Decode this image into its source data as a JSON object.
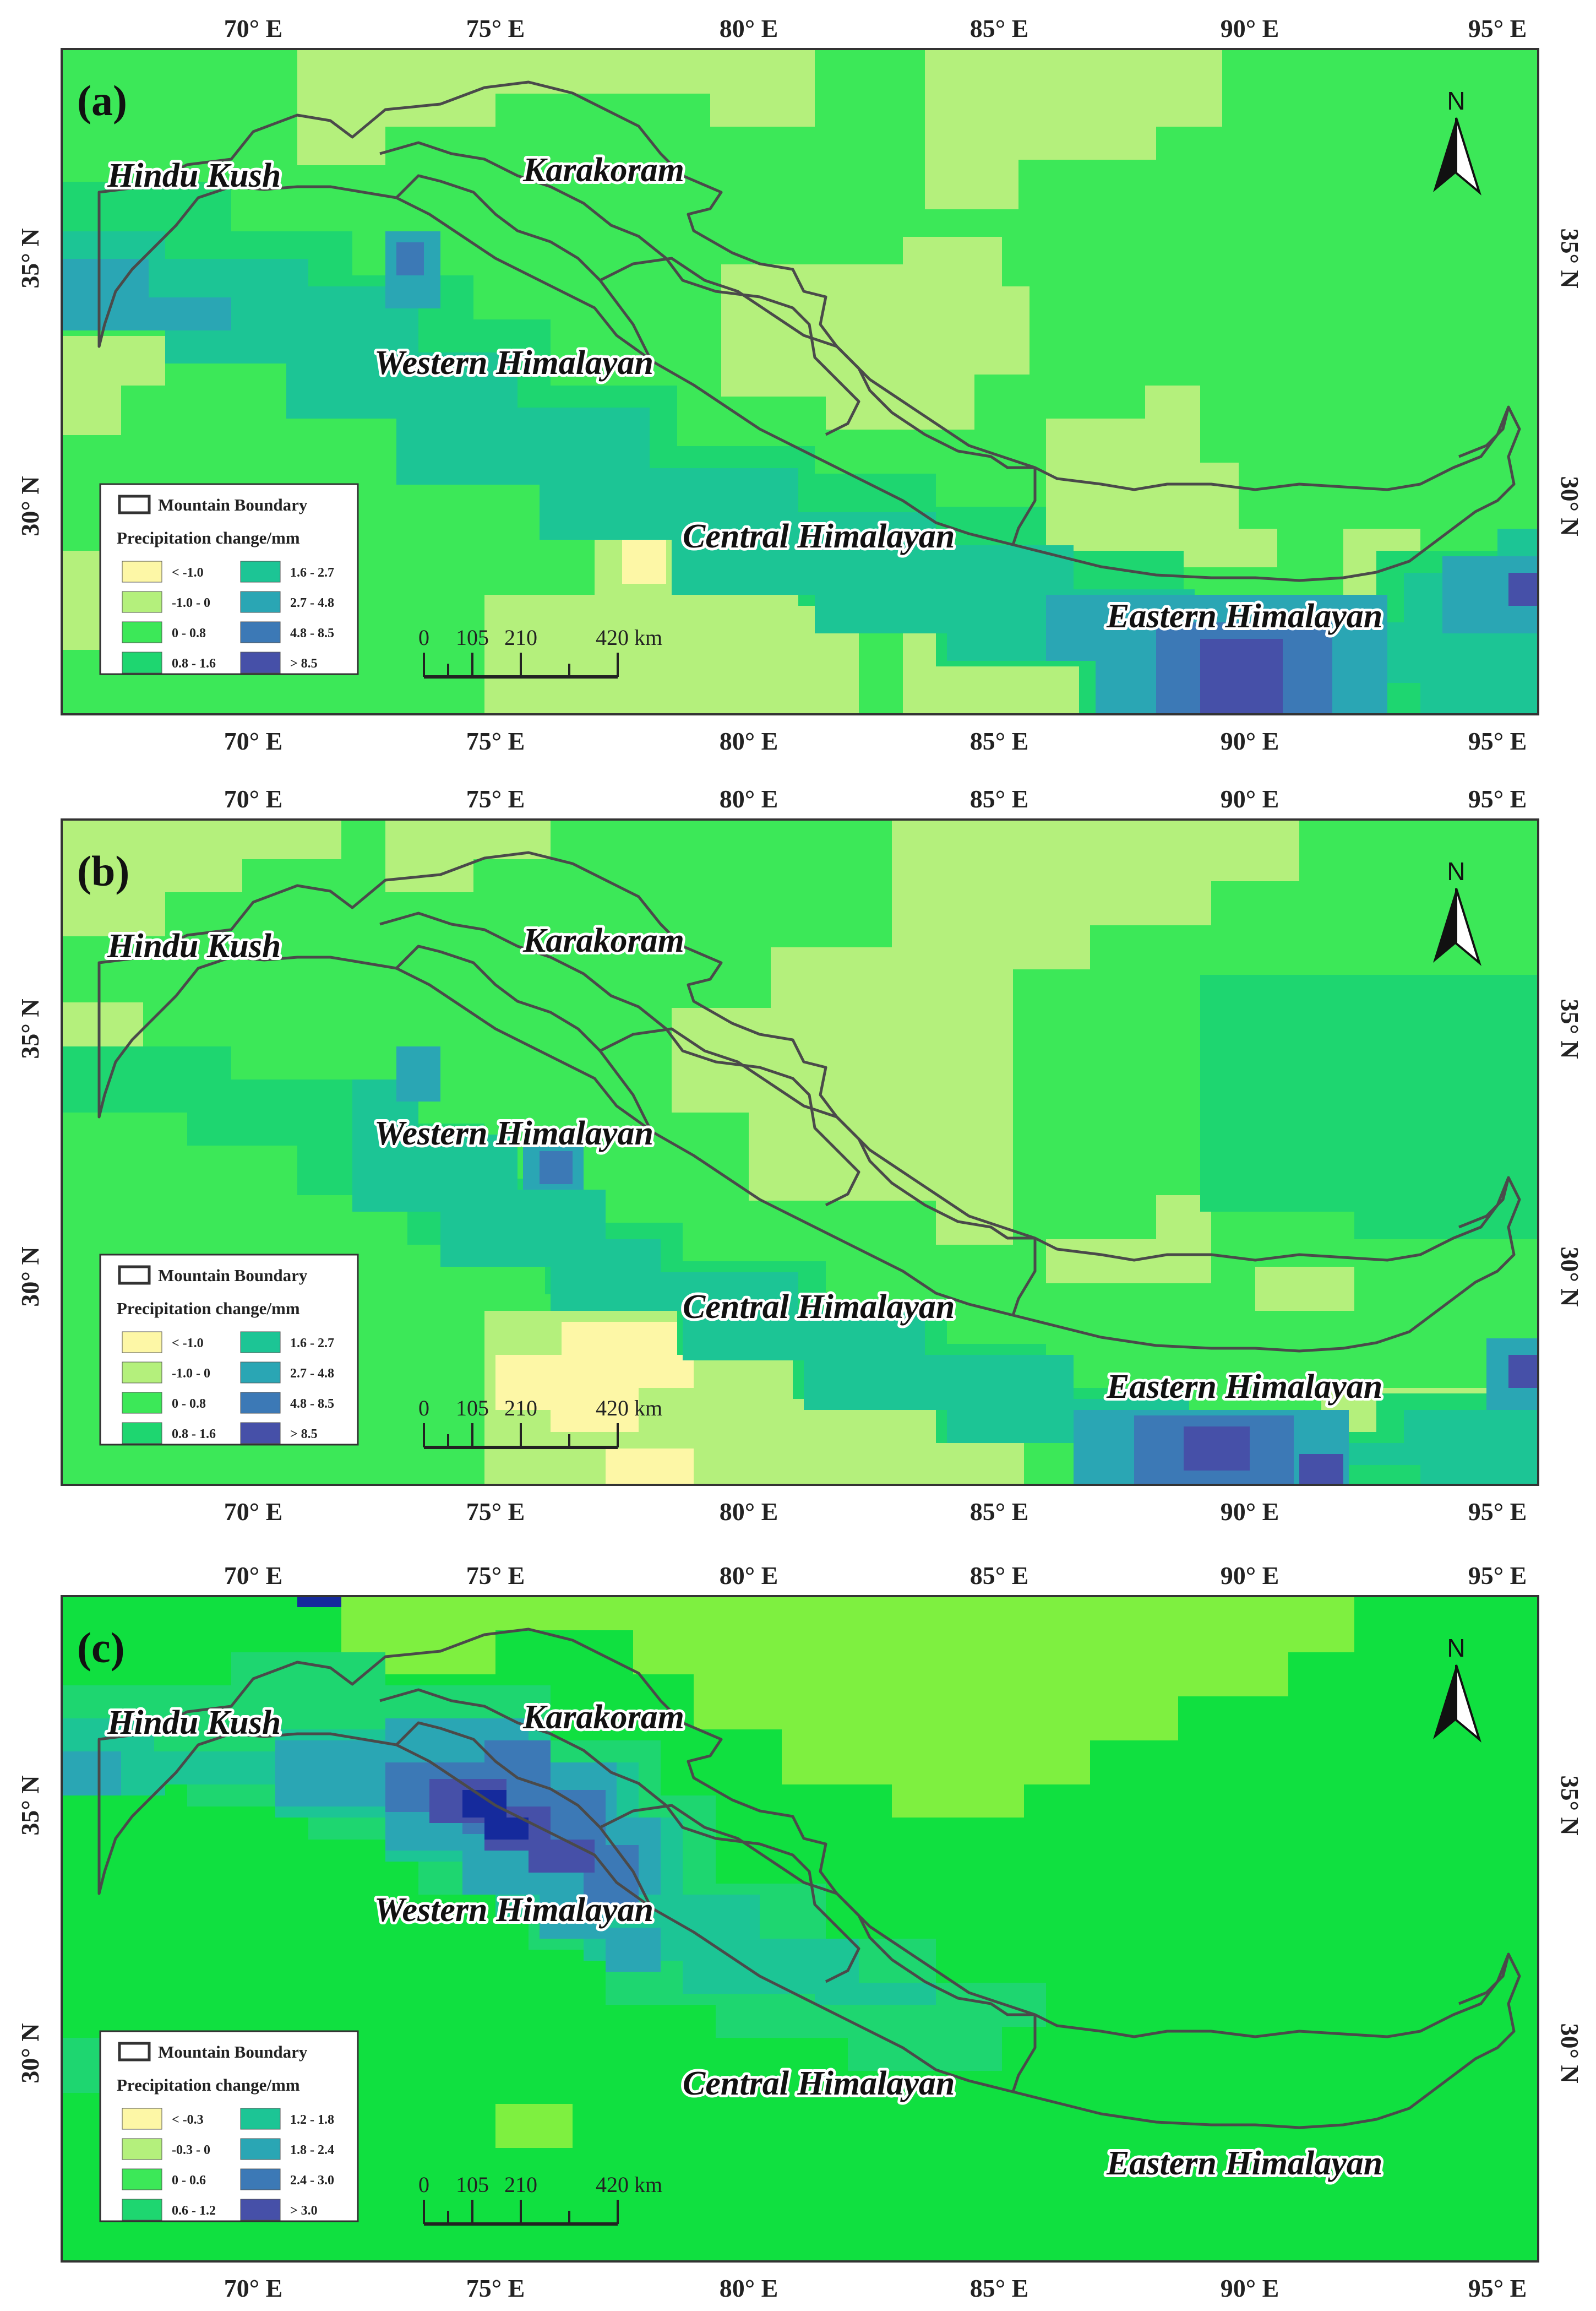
{
  "lon_labels": [
    "70° E",
    "75° E",
    "80° E",
    "85° E",
    "90° E",
    "95° E"
  ],
  "lat_labels": [
    "35° N",
    "30° N"
  ],
  "regions": {
    "hindu_kush": "Hindu Kush",
    "karakoram": "Karakoram",
    "western": "Western Himalayan",
    "central": "Central Himalayan",
    "eastern": "Eastern Himalayan"
  },
  "north": "N",
  "legend_boundary": "Mountain Boundary",
  "legend_title": "Precipitation change/mm",
  "scale": {
    "ticks": [
      "0",
      "105",
      "210",
      "420 km"
    ]
  },
  "panels": [
    {
      "label": "(a)",
      "legend": [
        {
          "label": "< -1.0",
          "color": "#fdf7a6"
        },
        {
          "label": "-1.0 - 0",
          "color": "#b4f07c"
        },
        {
          "label": "0 - 0.8",
          "color": "#3ce858"
        },
        {
          "label": "0.8 - 1.6",
          "color": "#1ed670"
        },
        {
          "label": "1.6 - 2.7",
          "color": "#1cc595"
        },
        {
          "label": "2.7 - 4.8",
          "color": "#2aa6b4"
        },
        {
          "label": "4.8 - 8.5",
          "color": "#3c79b6"
        },
        {
          "label": "> 8.5",
          "color": "#4650a8"
        }
      ]
    },
    {
      "label": "(b)",
      "legend": [
        {
          "label": "< -1.0",
          "color": "#fdf7a6"
        },
        {
          "label": "-1.0 - 0",
          "color": "#b4f07c"
        },
        {
          "label": "0 - 0.8",
          "color": "#3ce858"
        },
        {
          "label": "0.8 - 1.6",
          "color": "#1ed670"
        },
        {
          "label": "1.6 - 2.7",
          "color": "#1cc595"
        },
        {
          "label": "2.7 - 4.8",
          "color": "#2aa6b4"
        },
        {
          "label": "4.8 - 8.5",
          "color": "#3c79b6"
        },
        {
          "label": "> 8.5",
          "color": "#4650a8"
        }
      ]
    },
    {
      "label": "(c)",
      "legend": [
        {
          "label": "< -0.3",
          "color": "#fdf7a6"
        },
        {
          "label": "-0.3 - 0",
          "color": "#b4f07c"
        },
        {
          "label": "0 - 0.6",
          "color": "#3ce858"
        },
        {
          "label": "0.6 - 1.2",
          "color": "#1ed670"
        },
        {
          "label": "1.2 - 1.8",
          "color": "#1cc595"
        },
        {
          "label": "1.8 - 2.4",
          "color": "#2aa6b4"
        },
        {
          "label": "2.4 - 3.0",
          "color": "#3c79b6"
        },
        {
          "label": "> 3.0",
          "color": "#4650a8"
        }
      ]
    }
  ]
}
